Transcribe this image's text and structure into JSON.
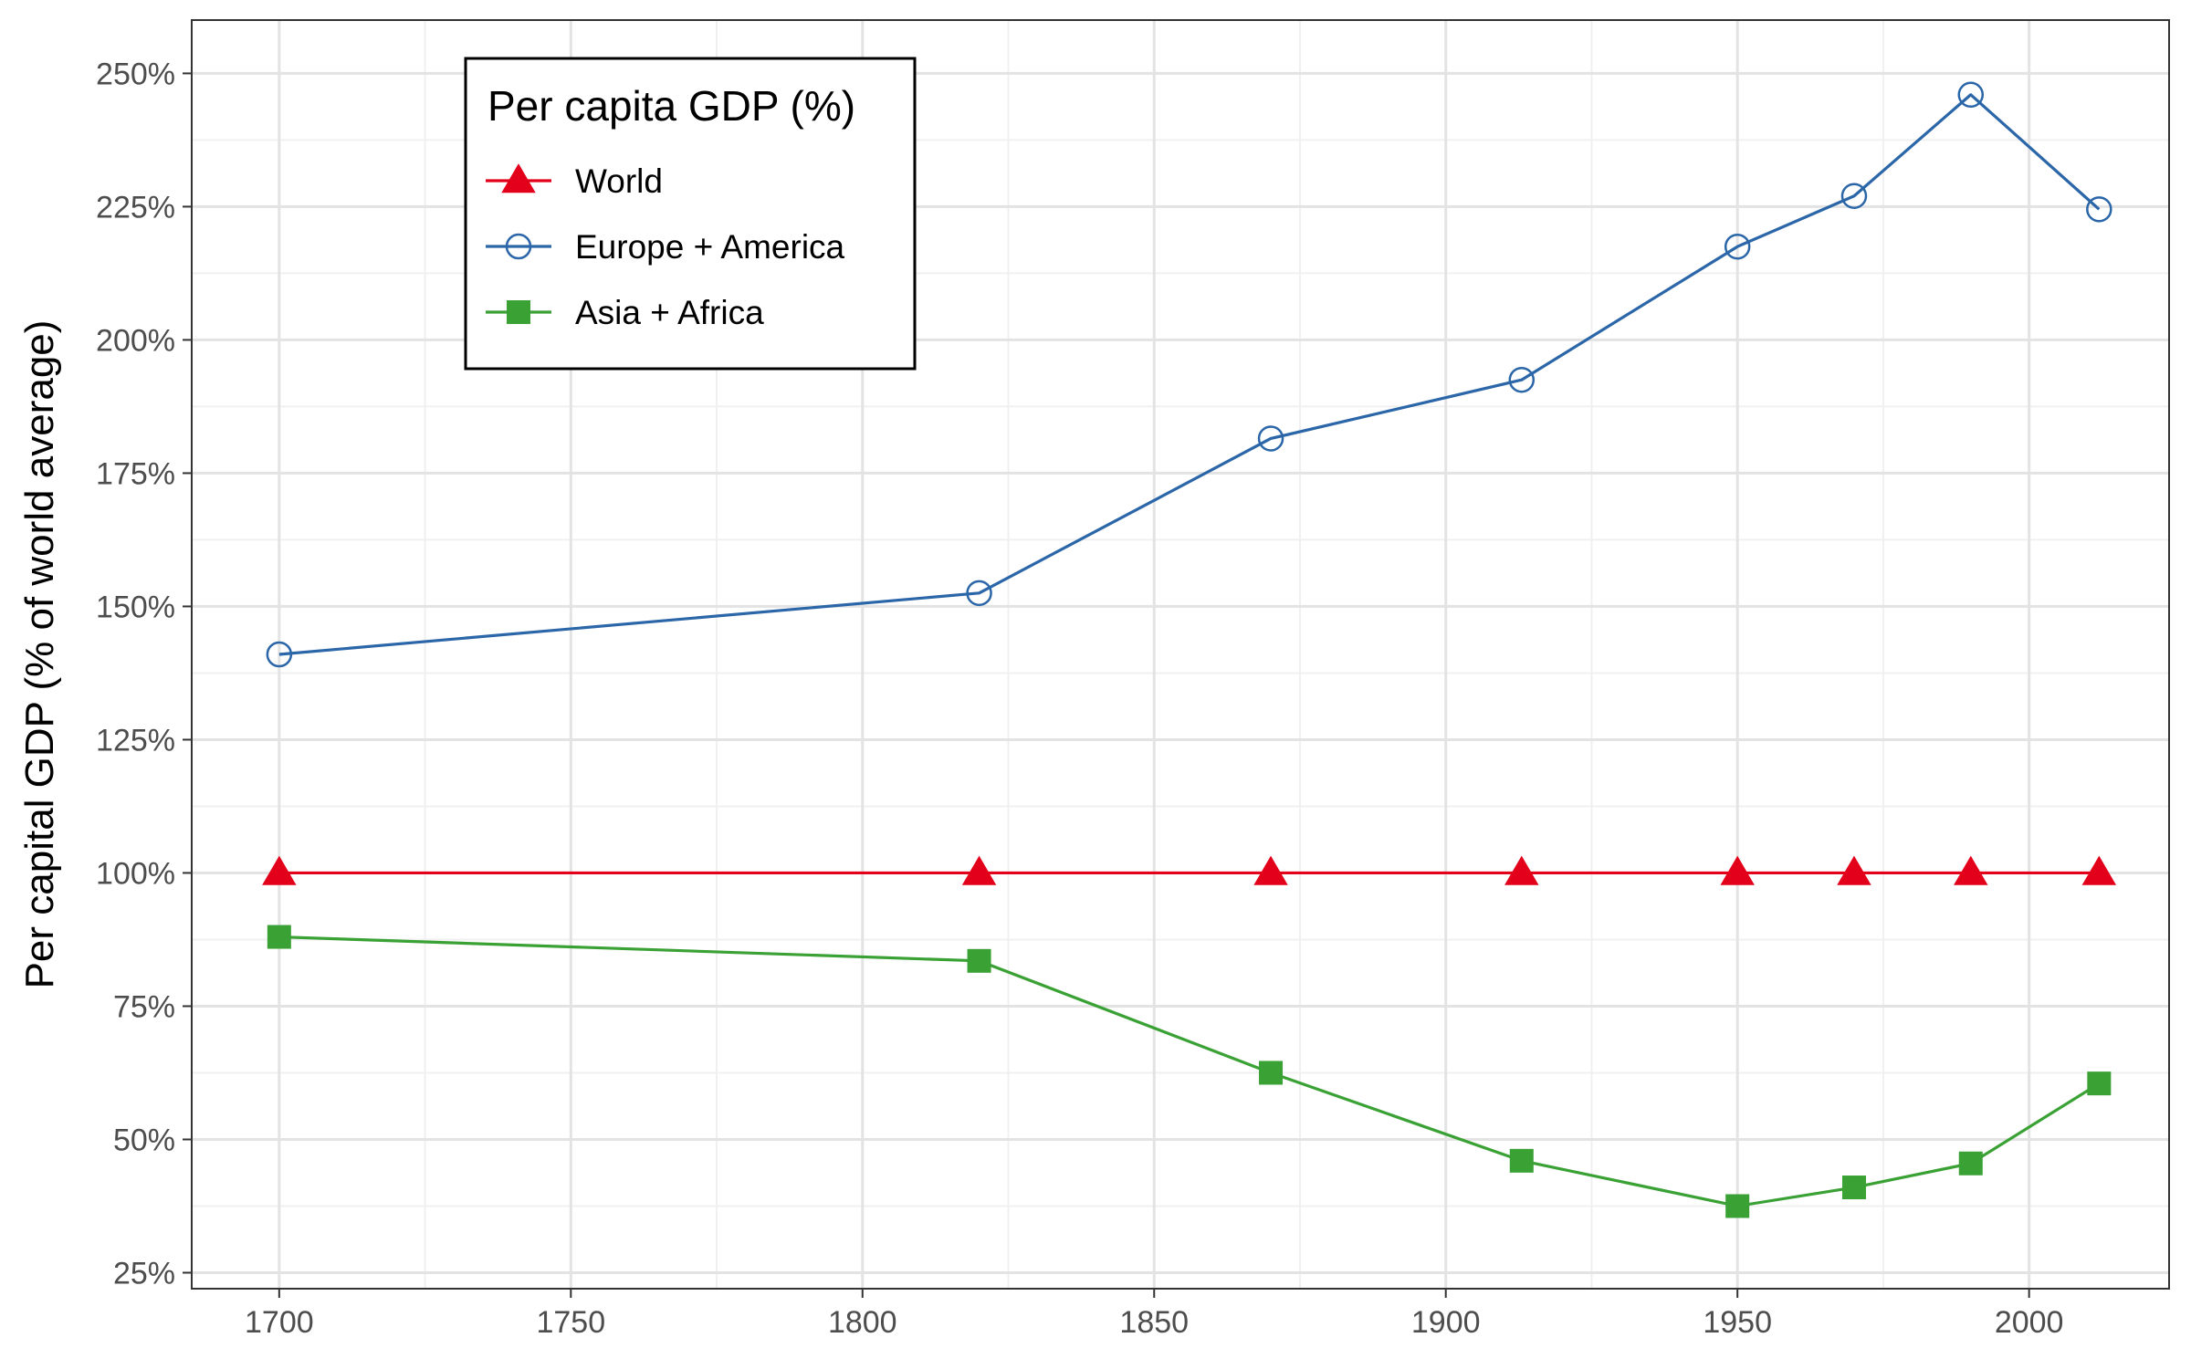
{
  "chart_data": {
    "type": "line",
    "title": "",
    "xlabel": "",
    "ylabel": "Per capital GDP (% of world average)",
    "xlim": [
      1685,
      2024
    ],
    "ylim": [
      22,
      260
    ],
    "x_ticks": [
      1700,
      1750,
      1800,
      1850,
      1900,
      1950,
      2000
    ],
    "x_tick_labels": [
      "1700",
      "1750",
      "1800",
      "1850",
      "1900",
      "1950",
      "2000"
    ],
    "y_ticks": [
      25,
      50,
      75,
      100,
      125,
      150,
      175,
      200,
      225,
      250
    ],
    "y_tick_labels": [
      "25%",
      "50%",
      "75%",
      "100%",
      "125%",
      "150%",
      "175%",
      "200%",
      "225%",
      "250%"
    ],
    "grid": true,
    "legend": {
      "title": "Per capita GDP (%)",
      "position": "top-left"
    },
    "x": [
      1700,
      1820,
      1870,
      1913,
      1950,
      1970,
      1990,
      2012
    ],
    "series": [
      {
        "name": "World",
        "values": [
          100,
          100,
          100,
          100,
          100,
          100,
          100,
          100
        ],
        "color": "#e3001b",
        "marker": "filled-triangle"
      },
      {
        "name": "Europe + America",
        "values": [
          141,
          152.5,
          181.5,
          192.5,
          217.5,
          227,
          246,
          224.5
        ],
        "color": "#2b66a8",
        "marker": "open-circle"
      },
      {
        "name": "Asia + Africa",
        "values": [
          88,
          83.5,
          62.5,
          46,
          37.5,
          41,
          45.5,
          60.5
        ],
        "color": "#3aa135",
        "marker": "filled-square"
      }
    ]
  }
}
